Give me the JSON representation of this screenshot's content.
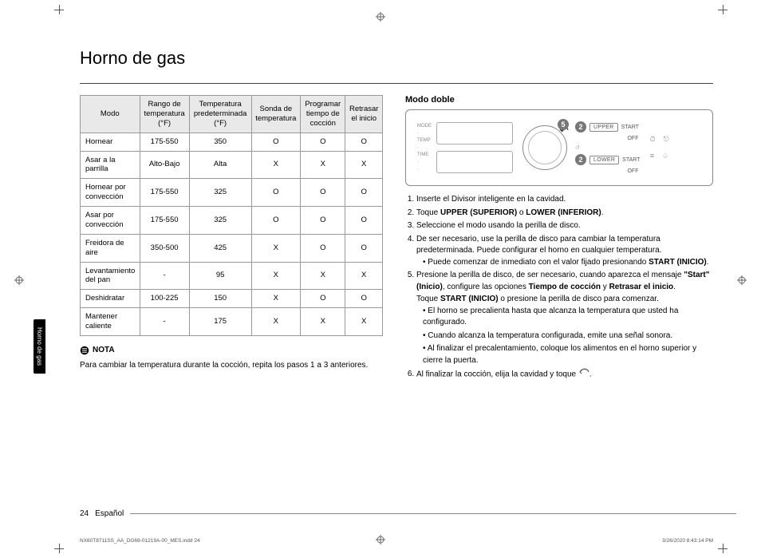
{
  "title": "Horno de gas",
  "sideTab": "Horno de gas",
  "table": {
    "headers": [
      "Modo",
      "Rango de temperatura (°F)",
      "Temperatura predeterminada (°F)",
      "Sonda de temperatura",
      "Programar tiempo de cocción",
      "Retrasar el inicio"
    ],
    "rows": [
      [
        "Hornear",
        "175-550",
        "350",
        "O",
        "O",
        "O"
      ],
      [
        "Asar a la parrilla",
        "Alto-Bajo",
        "Alta",
        "X",
        "X",
        "X"
      ],
      [
        "Hornear por convección",
        "175-550",
        "325",
        "O",
        "O",
        "O"
      ],
      [
        "Asar por convección",
        "175-550",
        "325",
        "O",
        "O",
        "O"
      ],
      [
        "Freidora de aire",
        "350-500",
        "425",
        "X",
        "O",
        "O"
      ],
      [
        "Levantamiento del pan",
        "-",
        "95",
        "X",
        "X",
        "X"
      ],
      [
        "Deshidratar",
        "100-225",
        "150",
        "X",
        "O",
        "O"
      ],
      [
        "Mantener caliente",
        "-",
        "175",
        "X",
        "X",
        "X"
      ]
    ]
  },
  "nota": {
    "label": "NOTA",
    "text": "Para cambiar la temperatura durante la cocción, repita los pasos 1 a 3 anteriores."
  },
  "right": {
    "heading": "Modo doble",
    "panel": {
      "leftLabels": [
        "MODE",
        "",
        "TEMP",
        "",
        "TIME",
        "",
        ""
      ],
      "badge5": "5",
      "badge2": "2",
      "upper": "UPPER",
      "lower": "LOWER",
      "start": "START",
      "off": "OFF"
    },
    "steps": {
      "s1": "Inserte el Divisor inteligente en la cavidad.",
      "s2_a": "Toque ",
      "s2_b": "UPPER (SUPERIOR)",
      "s2_c": " o ",
      "s2_d": "LOWER (INFERIOR)",
      "s2_e": ".",
      "s3": "Seleccione el modo usando la perilla de disco.",
      "s4": "De ser necesario, use la perilla de disco para cambiar la temperatura predeterminada. Puede configurar el horno en cualquier temperatura.",
      "s4_b1a": "Puede comenzar de inmediato con el valor fijado presionando ",
      "s4_b1b": "START (INICIO)",
      "s4_b1c": ".",
      "s5a": "Presione la perilla de disco, de ser necesario, cuando aparezca el mensaje ",
      "s5quote": "\"Start\" (Inicio)",
      "s5b": ", configure las opciones ",
      "s5t1": "Tiempo de cocción",
      "s5and": " y ",
      "s5t2": "Retrasar el inicio",
      "s5c": ".",
      "s5d_a": "Toque ",
      "s5d_b": "START (INICIO)",
      "s5d_c": " o presione la perilla de disco para comenzar.",
      "s5_b1": "El horno se precalienta hasta que alcanza la temperatura que usted ha configurado.",
      "s5_b2": "Cuando alcanza la temperatura configurada, emite una señal sonora.",
      "s5_b3": "Al finalizar el precalentamiento, coloque los alimentos en el horno superior y cierre la puerta.",
      "s6a": "Al finalizar la cocción, elija la cavidad y toque ",
      "s6b": "."
    }
  },
  "footer": {
    "page": "24",
    "lang": "Español"
  },
  "meta": {
    "left": "NX60T8711SS_AA_DG68-01219A-00_MES.indd   24",
    "right": "3/26/2020   8:43:14 PM"
  }
}
